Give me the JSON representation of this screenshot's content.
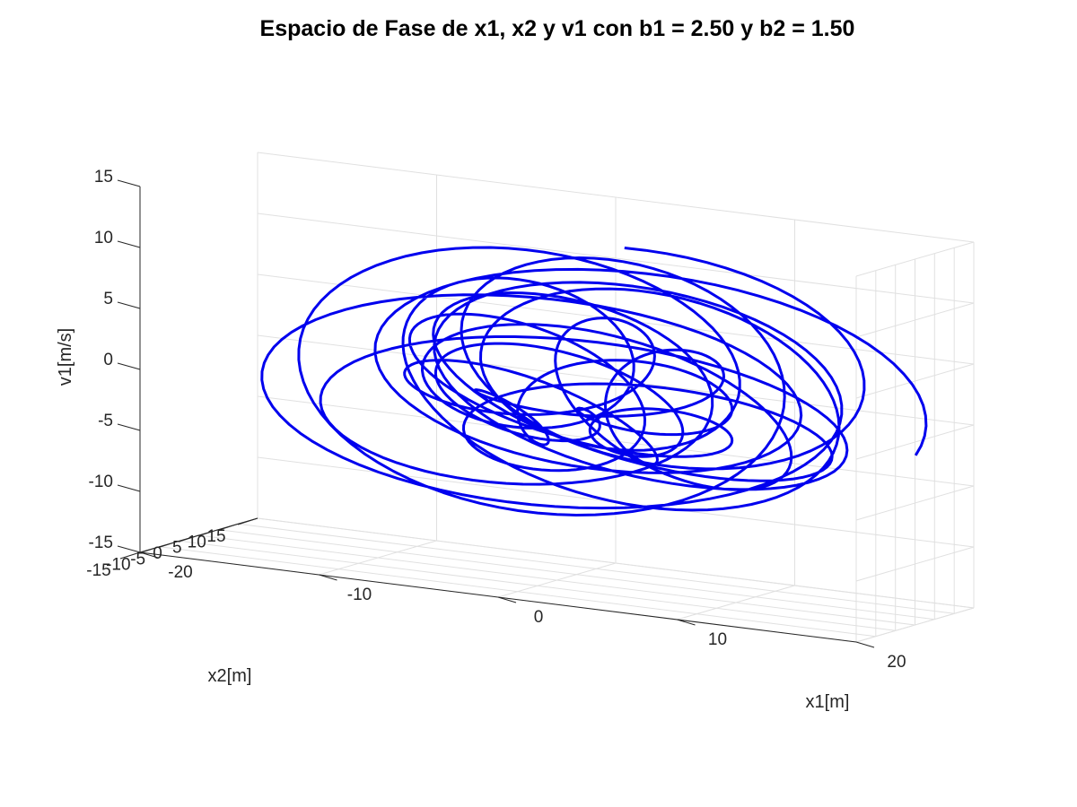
{
  "chart_data": {
    "type": "line3d",
    "title": "Espacio de Fase de x1, x2 y v1 con b1 = 2.50 y b2 = 1.50",
    "xlabel": "x1[m]",
    "ylabel": "x2[m]",
    "zlabel": "v1[m/s]",
    "xlim": [
      -20,
      20
    ],
    "ylim": [
      -15,
      15
    ],
    "zlim": [
      -15,
      15
    ],
    "xticks": [
      -20,
      -10,
      0,
      10,
      20
    ],
    "yticks": [
      -15,
      -10,
      -5,
      0,
      5,
      10,
      15
    ],
    "zticks": [
      -15,
      -10,
      -5,
      0,
      5,
      10,
      15
    ],
    "grid": true,
    "series": [
      {
        "color": "#0000ee",
        "description_lobes": [
          {
            "z_center": 5.5,
            "z_amp": 7.5,
            "x_center": 2,
            "y_center": -1
          },
          {
            "z_center": -6.5,
            "z_amp": 7.0,
            "x_center": -2,
            "y_center": -1
          }
        ],
        "start_point": [
          -1.5,
          -2.5,
          -12.8
        ]
      }
    ]
  }
}
